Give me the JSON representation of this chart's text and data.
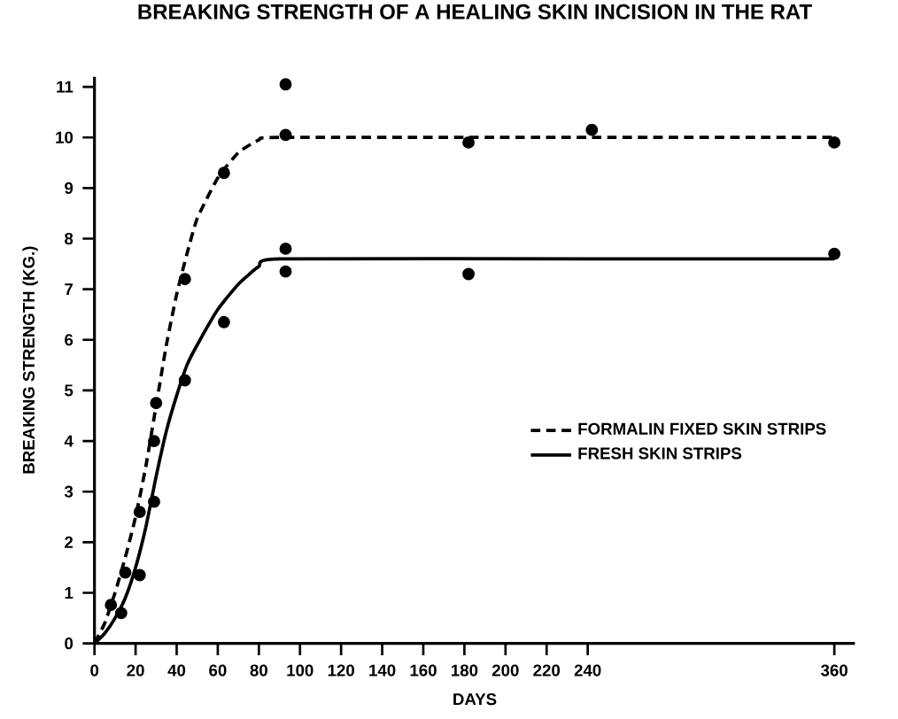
{
  "chart_data": {
    "type": "line",
    "title": "BREAKING STRENGTH OF A HEALING SKIN INCISION IN THE RAT",
    "xlabel": "DAYS",
    "ylabel": "BREAKING STRENGTH (KG.)",
    "xlim": [
      0,
      370
    ],
    "ylim": [
      0,
      11.2
    ],
    "xticks": [
      0,
      20,
      40,
      60,
      80,
      100,
      120,
      140,
      160,
      180,
      200,
      220,
      240,
      360
    ],
    "yticks": [
      0,
      1,
      2,
      3,
      4,
      5,
      6,
      7,
      8,
      9,
      10,
      11
    ],
    "legend": "right",
    "grid": false,
    "series": [
      {
        "name": "FORMALIN FIXED SKIN STRIPS",
        "color": "#000000",
        "line_style": "dashed",
        "marker": "none",
        "x": [
          0,
          5,
          10,
          15,
          20,
          25,
          30,
          35,
          40,
          45,
          50,
          60,
          70,
          80,
          90,
          240,
          360
        ],
        "values": [
          0,
          0.4,
          1.0,
          1.7,
          2.5,
          3.5,
          4.7,
          5.9,
          6.9,
          7.7,
          8.4,
          9.2,
          9.7,
          9.95,
          10,
          10,
          10
        ]
      },
      {
        "name": "FRESH SKIN STRIPS",
        "color": "#000000",
        "line_style": "solid",
        "marker": "none",
        "x": [
          0,
          5,
          10,
          15,
          20,
          25,
          30,
          35,
          40,
          45,
          50,
          60,
          70,
          80,
          90,
          240,
          360
        ],
        "values": [
          0,
          0.2,
          0.5,
          0.9,
          1.5,
          2.3,
          3.3,
          4.2,
          4.9,
          5.5,
          5.9,
          6.6,
          7.1,
          7.45,
          7.6,
          7.6,
          7.6
        ]
      },
      {
        "type": "scatter",
        "color": "#000000",
        "marker": "circle",
        "x": [
          8,
          15,
          22,
          29,
          30,
          44,
          63,
          93,
          93,
          182,
          242,
          360
        ],
        "values": [
          0.76,
          1.4,
          2.6,
          4.0,
          4.75,
          7.2,
          9.3,
          10.05,
          11.05,
          9.9,
          10.15,
          9.9
        ]
      },
      {
        "type": "scatter",
        "color": "#000000",
        "marker": "circle",
        "x": [
          13,
          22,
          29,
          44,
          63,
          93,
          93,
          182,
          360
        ],
        "values": [
          0.6,
          1.35,
          2.8,
          5.2,
          6.35,
          7.35,
          7.8,
          7.3,
          7.7
        ]
      }
    ]
  }
}
